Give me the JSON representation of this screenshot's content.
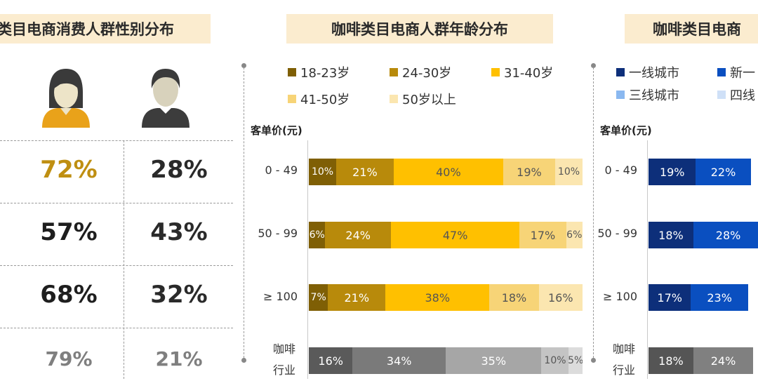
{
  "titles": {
    "gender": "类目电商消费人群性别分布",
    "age": "咖啡类目电商人群年龄分布",
    "city": "咖啡类目电商"
  },
  "gender_table": {
    "icons": [
      "female-icon",
      "male-icon"
    ],
    "rows": [
      {
        "female": "72%",
        "male": "28%"
      },
      {
        "female": "57%",
        "male": "43%"
      },
      {
        "female": "68%",
        "male": "32%"
      },
      {
        "female": "79%",
        "male": "21%"
      }
    ]
  },
  "chart_data": [
    {
      "type": "bar",
      "orientation": "horizontal-stacked",
      "ylabel": "客单价(元)",
      "categories": [
        "0 - 49",
        "50 - 99",
        "≥ 100",
        "咖啡行业"
      ],
      "category_lines": [
        [
          "0 - 49"
        ],
        [
          "50 - 99"
        ],
        [
          "≥ 100"
        ],
        [
          "咖啡",
          "行业"
        ]
      ],
      "series": [
        {
          "name": "18-23岁",
          "values": [
            10,
            6,
            7,
            16
          ],
          "color": "#7f5f05"
        },
        {
          "name": "24-30岁",
          "values": [
            21,
            24,
            21,
            34
          ],
          "color": "#b88a0b"
        },
        {
          "name": "31-40岁",
          "values": [
            40,
            47,
            38,
            35
          ],
          "color": "#ffc000"
        },
        {
          "name": "41-50岁",
          "values": [
            19,
            17,
            18,
            10
          ],
          "color": "#f7d477"
        },
        {
          "name": "50岁以上",
          "values": [
            10,
            6,
            16,
            5
          ],
          "color": "#fbe6b0"
        }
      ],
      "industry_colors": [
        "#5a5a5a",
        "#7a7a7a",
        "#a6a6a6",
        "#c4c4c4",
        "#dcdcdc"
      ],
      "legend": "top"
    },
    {
      "type": "bar",
      "orientation": "horizontal-stacked",
      "ylabel": "客单价(元)",
      "categories": [
        "0 - 49",
        "50 - 99",
        "≥ 100",
        "咖啡行业"
      ],
      "category_lines": [
        [
          "0 - 49"
        ],
        [
          "50 - 99"
        ],
        [
          "≥ 100"
        ],
        [
          "咖啡",
          "行业"
        ]
      ],
      "series": [
        {
          "name": "一线城市",
          "values": [
            19,
            18,
            17,
            18
          ],
          "color": "#0d2f7a"
        },
        {
          "name": "新一",
          "values": [
            22,
            28,
            23,
            24
          ],
          "color": "#0a4fc0"
        },
        {
          "name": "三线城市",
          "values": [
            null,
            null,
            null,
            null
          ],
          "color": "#8ab8f0"
        },
        {
          "name": "四线",
          "values": [
            null,
            null,
            null,
            null
          ],
          "color": "#cfe0f7"
        }
      ],
      "industry_colors": [
        "#555555",
        "#808080"
      ],
      "legend": "top"
    }
  ]
}
